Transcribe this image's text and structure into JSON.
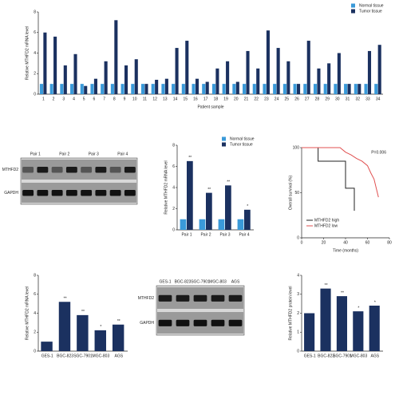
{
  "chart_data": [
    {
      "type": "bar",
      "y_label": "Relative MTHFD2 mRNA level",
      "x_label": "Patient sample",
      "categories": [
        "1",
        "2",
        "3",
        "4",
        "5",
        "6",
        "7",
        "8",
        "9",
        "10",
        "11",
        "12",
        "13",
        "14",
        "15",
        "16",
        "17",
        "18",
        "19",
        "20",
        "21",
        "22",
        "23",
        "24",
        "25",
        "26",
        "27",
        "28",
        "29",
        "30",
        "31",
        "32",
        "33",
        "34"
      ],
      "series": [
        {
          "name": "Normal tissue",
          "color": "#3a9ad9",
          "values": [
            1,
            1,
            1,
            1,
            1,
            1,
            1,
            1,
            1,
            1,
            1,
            1,
            1,
            1,
            1,
            1,
            1,
            1,
            1,
            1,
            1,
            1,
            1,
            1,
            1,
            1,
            1,
            1,
            1,
            1,
            1,
            1,
            1,
            1
          ]
        },
        {
          "name": "Tumor tissue",
          "color": "#1b3160",
          "values": [
            6,
            5.6,
            2.8,
            3.9,
            0.8,
            1.5,
            3.2,
            7.2,
            2.8,
            3.4,
            1,
            1.4,
            1.5,
            4.5,
            5.2,
            1.5,
            1.2,
            2.5,
            3.2,
            1.2,
            4.2,
            2.5,
            6.2,
            4.5,
            3.2,
            1,
            5.2,
            2.5,
            3,
            4,
            1,
            1,
            4.2,
            4.8
          ]
        }
      ],
      "ylim": [
        0,
        8
      ],
      "yticks": [
        0,
        2,
        4,
        6,
        8
      ],
      "legend": "upper right"
    },
    {
      "type": "bar",
      "y_label": "Relative MTHFD2 mRNA level",
      "categories": [
        "Pair 1",
        "Pair 2",
        "Pair 3",
        "Pair 4"
      ],
      "series": [
        {
          "name": "Normal tissue",
          "color": "#3a9ad9",
          "values": [
            1,
            1,
            1,
            1
          ]
        },
        {
          "name": "Tumor tissue",
          "color": "#1b3160",
          "values": [
            6.5,
            3.5,
            4.2,
            1.9
          ]
        }
      ],
      "annotations": [
        "**",
        "**",
        "**",
        "*"
      ],
      "ylim": [
        0,
        8
      ],
      "yticks": [
        0,
        2,
        4,
        6,
        8
      ],
      "legend": "upper right"
    },
    {
      "type": "line",
      "y_label": "Overall survival (%)",
      "x_label": "Time (months)",
      "annotation": "P=0.006",
      "series": [
        {
          "name": "MTHFD2 high",
          "color": "#222222",
          "x": [
            0,
            15,
            15,
            40,
            40,
            48,
            48
          ],
          "values": [
            100,
            100,
            85,
            85,
            55,
            55,
            30
          ]
        },
        {
          "name": "MTHFD2 low",
          "color": "#e05050",
          "x": [
            0,
            35,
            40,
            45,
            50,
            55,
            60,
            63,
            66,
            68,
            70
          ],
          "values": [
            100,
            100,
            95,
            92,
            88,
            85,
            80,
            72,
            65,
            55,
            45
          ]
        }
      ],
      "xlim": [
        0,
        80
      ],
      "xticks": [
        0,
        20,
        40,
        60,
        80
      ],
      "ylim": [
        0,
        100
      ],
      "yticks": [
        0,
        50,
        100
      ],
      "legend": "lower left"
    },
    {
      "type": "bar",
      "y_label": "Relative MTHFD2 mRNA level",
      "categories": [
        "GES-1",
        "BGC-823",
        "SGC-7901",
        "MGC-803",
        "AGS"
      ],
      "series": [
        {
          "name": "MTHFD2",
          "color": "#1b3160",
          "values": [
            1,
            5.2,
            3.8,
            2.2,
            2.8
          ]
        }
      ],
      "annotations": [
        null,
        "**",
        "**",
        "*",
        "**"
      ],
      "ylim": [
        0,
        8
      ],
      "yticks": [
        0,
        2,
        4,
        6,
        8
      ]
    },
    {
      "type": "bar",
      "y_label": "Relative MTHFD2 protein level",
      "categories": [
        "GES-1",
        "BGC-823",
        "SGC-7901",
        "MGC-803",
        "AGS"
      ],
      "series": [
        {
          "name": "MTHFD2",
          "color": "#1b3160",
          "values": [
            2,
            3.3,
            2.9,
            2.1,
            2.4
          ]
        }
      ],
      "annotations": [
        null,
        "**",
        "**",
        "*",
        "*"
      ],
      "ylim": [
        0,
        4
      ],
      "yticks": [
        0,
        1,
        2,
        3,
        4
      ]
    }
  ],
  "blots": [
    {
      "lanes": [
        "Pair 1",
        "Pair 2",
        "Pair 3",
        "Pair 4"
      ],
      "rows": [
        "MTHFD2",
        "GAPDH"
      ]
    },
    {
      "lanes": [
        "GES-1",
        "BGC-823",
        "SGC-7901",
        "MGC-803",
        "AGS"
      ],
      "rows": [
        "MTHFD2",
        "GAPDH"
      ]
    }
  ]
}
